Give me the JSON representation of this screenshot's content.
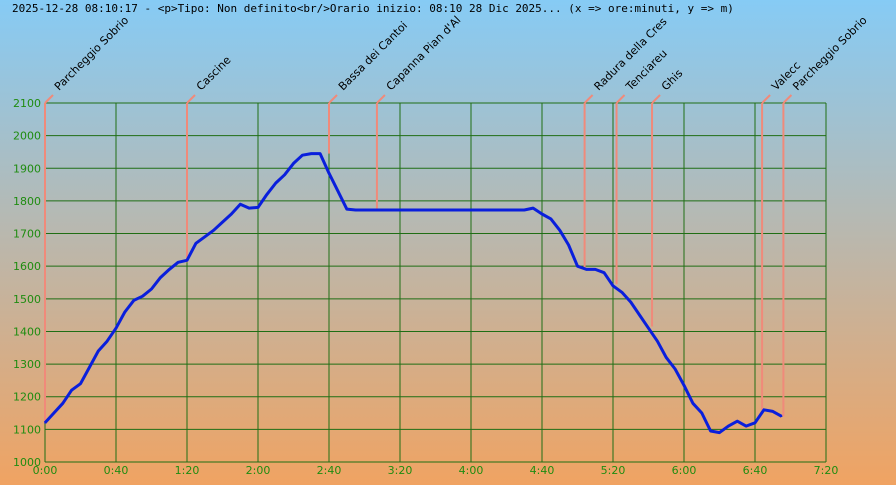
{
  "header": {
    "title": "2025-12-28 08:10:17 - <p>Tipo: Non definito<br/>Orario inizio: 08:10 28 Dic 2025... (x => ore:minuti, y => m)"
  },
  "colors": {
    "bg_top": "#86cbf5",
    "bg_bottom": "#f0a362",
    "grid": "#1f6e14",
    "tick_text": "#1f8c10",
    "profile": "#0a1fdc",
    "waypoint": "#f08a7a"
  },
  "chart_data": {
    "type": "line",
    "title": "2025-12-28 08:10:17 - <p>Tipo: Non definito<br/>Orario inizio: 08:10 28 Dic 2025... (x => ore:minuti, y => m)",
    "x_unit": "minutes",
    "xlim": [
      0,
      440
    ],
    "ylim": [
      1000,
      2100
    ],
    "x_ticks": [
      {
        "value": 0,
        "label": "0:00"
      },
      {
        "value": 40,
        "label": "0:40"
      },
      {
        "value": 80,
        "label": "1:20"
      },
      {
        "value": 120,
        "label": "2:00"
      },
      {
        "value": 160,
        "label": "2:40"
      },
      {
        "value": 200,
        "label": "3:20"
      },
      {
        "value": 240,
        "label": "4:00"
      },
      {
        "value": 280,
        "label": "4:40"
      },
      {
        "value": 320,
        "label": "5:20"
      },
      {
        "value": 360,
        "label": "6:00"
      },
      {
        "value": 400,
        "label": "6:40"
      },
      {
        "value": 440,
        "label": "7:20"
      }
    ],
    "y_ticks": [
      1000,
      1100,
      1200,
      1300,
      1400,
      1500,
      1600,
      1700,
      1800,
      1900,
      2000,
      2100
    ],
    "grid": true,
    "series": [
      {
        "x": [
          0,
          5,
          10,
          15,
          20,
          25,
          30,
          35,
          40,
          45,
          50,
          55,
          60,
          65,
          70,
          75,
          80,
          85,
          90,
          95,
          100,
          105,
          110,
          115,
          120,
          125,
          130,
          135,
          140,
          145,
          150,
          155,
          160,
          165,
          170,
          175,
          180,
          185,
          190,
          195,
          200,
          210,
          220,
          230,
          240,
          250,
          260,
          270,
          275,
          280,
          285,
          290,
          295,
          300,
          305,
          310,
          315,
          320,
          325,
          330,
          335,
          340,
          345,
          350,
          355,
          360,
          365,
          370,
          375,
          380,
          385,
          390,
          395,
          400,
          405,
          410,
          415
        ],
        "y": [
          1120,
          1150,
          1180,
          1220,
          1240,
          1290,
          1340,
          1370,
          1410,
          1460,
          1495,
          1508,
          1530,
          1565,
          1590,
          1612,
          1618,
          1670,
          1690,
          1710,
          1735,
          1760,
          1790,
          1778,
          1780,
          1820,
          1855,
          1880,
          1915,
          1940,
          1945,
          1945,
          1885,
          1830,
          1775,
          1772,
          1772,
          1772,
          1772,
          1772,
          1772,
          1772,
          1772,
          1772,
          1772,
          1772,
          1772,
          1772,
          1778,
          1760,
          1745,
          1710,
          1665,
          1600,
          1590,
          1590,
          1580,
          1540,
          1520,
          1490,
          1450,
          1410,
          1370,
          1320,
          1285,
          1235,
          1180,
          1150,
          1095,
          1090,
          1110,
          1125,
          1110,
          1120,
          1160,
          1155,
          1140
        ]
      }
    ],
    "waypoints": [
      {
        "label": "Parcheggio Sobrio",
        "x": 0,
        "y": 1120
      },
      {
        "label": "Cascine",
        "x": 80,
        "y": 1612
      },
      {
        "label": "Bassa dei Cantoi",
        "x": 160,
        "y": 1945
      },
      {
        "label": "Capanna Pian d'Al",
        "x": 187,
        "y": 1775
      },
      {
        "label": "Radura della Cres",
        "x": 304,
        "y": 1592
      },
      {
        "label": "Tenciareu",
        "x": 322,
        "y": 1545
      },
      {
        "label": "Ghis",
        "x": 342,
        "y": 1415
      },
      {
        "label": "Valecc",
        "x": 404,
        "y": 1160
      },
      {
        "label": "Parcheggio Sobrio",
        "x": 416,
        "y": 1140
      }
    ]
  }
}
